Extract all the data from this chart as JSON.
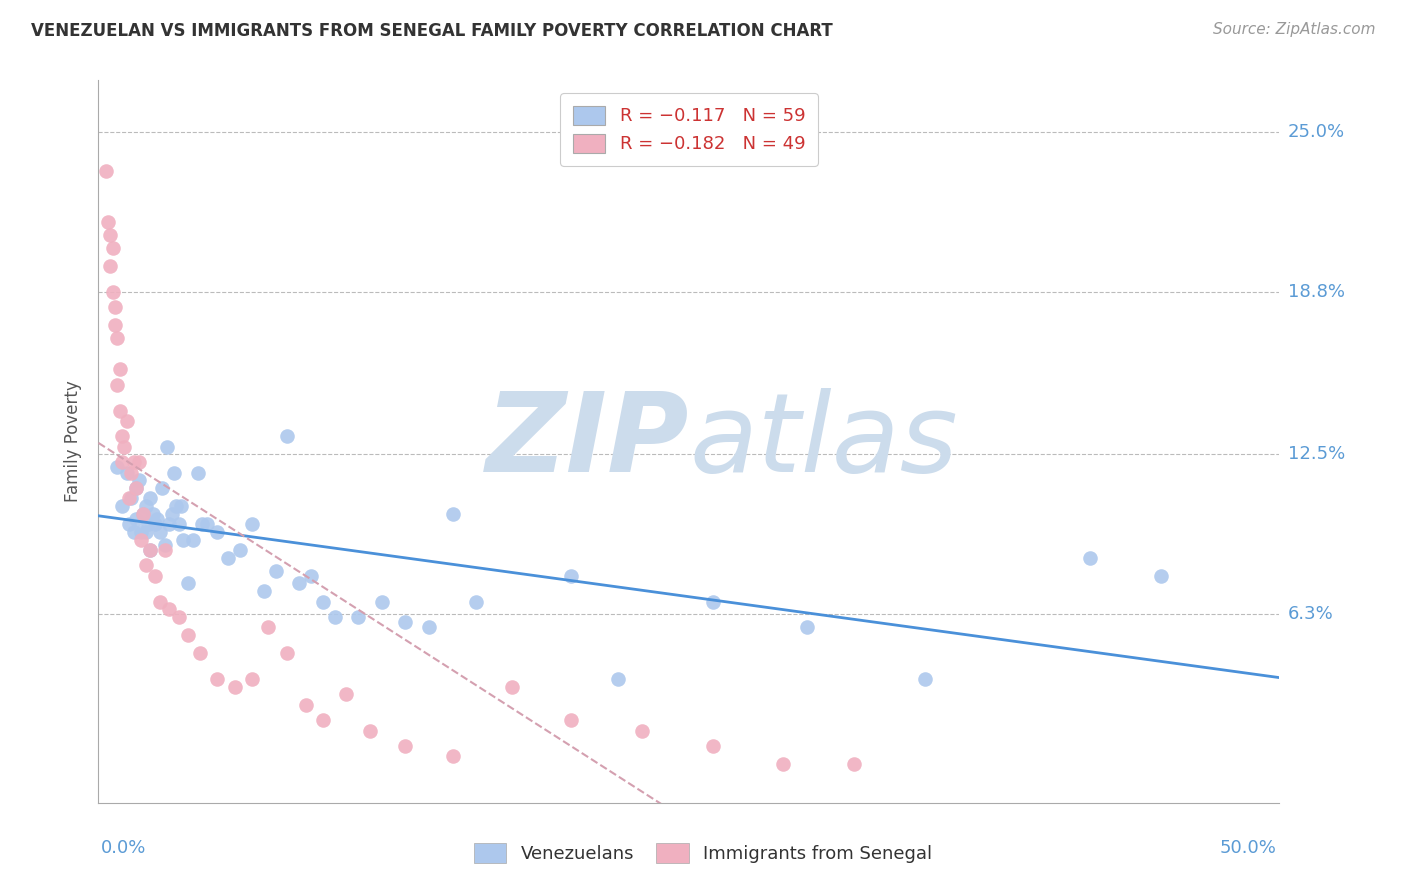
{
  "title": "VENEZUELAN VS IMMIGRANTS FROM SENEGAL FAMILY POVERTY CORRELATION CHART",
  "source": "Source: ZipAtlas.com",
  "ylabel": "Family Poverty",
  "ytick_labels": [
    "25.0%",
    "18.8%",
    "12.5%",
    "6.3%"
  ],
  "ytick_values": [
    0.25,
    0.188,
    0.125,
    0.063
  ],
  "xlim": [
    0.0,
    0.5
  ],
  "ylim": [
    -0.01,
    0.27
  ],
  "legend_entries": [
    {
      "label": "R = −0.117   N = 59",
      "color": "#adc8ed"
    },
    {
      "label": "R = −0.182   N = 49",
      "color": "#f0b0c0"
    }
  ],
  "legend_labels_bottom": [
    "Venezuelans",
    "Immigrants from Senegal"
  ],
  "venezuelan_color": "#adc8ed",
  "senegal_color": "#f0b0c0",
  "trend_venezuelan_color": "#4a90d9",
  "trend_senegal_color": "#d4a0b0",
  "watermark_zip": "ZIP",
  "watermark_atlas": "atlas",
  "watermark_color": "#ccdcec",
  "background_color": "#ffffff",
  "grid_color": "#bbbbbb",
  "venezuelan_x": [
    0.008,
    0.01,
    0.012,
    0.013,
    0.014,
    0.015,
    0.016,
    0.016,
    0.017,
    0.018,
    0.019,
    0.02,
    0.02,
    0.021,
    0.022,
    0.022,
    0.023,
    0.024,
    0.025,
    0.026,
    0.027,
    0.028,
    0.029,
    0.03,
    0.031,
    0.032,
    0.033,
    0.034,
    0.035,
    0.036,
    0.038,
    0.04,
    0.042,
    0.044,
    0.046,
    0.05,
    0.055,
    0.06,
    0.065,
    0.07,
    0.075,
    0.08,
    0.085,
    0.09,
    0.095,
    0.1,
    0.11,
    0.12,
    0.13,
    0.14,
    0.15,
    0.16,
    0.2,
    0.22,
    0.26,
    0.3,
    0.35,
    0.42,
    0.45
  ],
  "venezuelan_y": [
    0.12,
    0.105,
    0.118,
    0.098,
    0.108,
    0.095,
    0.112,
    0.1,
    0.115,
    0.095,
    0.102,
    0.105,
    0.095,
    0.098,
    0.108,
    0.088,
    0.102,
    0.098,
    0.1,
    0.095,
    0.112,
    0.09,
    0.128,
    0.098,
    0.102,
    0.118,
    0.105,
    0.098,
    0.105,
    0.092,
    0.075,
    0.092,
    0.118,
    0.098,
    0.098,
    0.095,
    0.085,
    0.088,
    0.098,
    0.072,
    0.08,
    0.132,
    0.075,
    0.078,
    0.068,
    0.062,
    0.062,
    0.068,
    0.06,
    0.058,
    0.102,
    0.068,
    0.078,
    0.038,
    0.068,
    0.058,
    0.038,
    0.085,
    0.078
  ],
  "senegal_x": [
    0.003,
    0.004,
    0.005,
    0.005,
    0.006,
    0.006,
    0.007,
    0.007,
    0.008,
    0.008,
    0.009,
    0.009,
    0.01,
    0.01,
    0.011,
    0.012,
    0.013,
    0.014,
    0.015,
    0.016,
    0.017,
    0.018,
    0.019,
    0.02,
    0.022,
    0.024,
    0.026,
    0.028,
    0.03,
    0.034,
    0.038,
    0.043,
    0.05,
    0.058,
    0.065,
    0.072,
    0.08,
    0.088,
    0.095,
    0.105,
    0.115,
    0.13,
    0.15,
    0.175,
    0.2,
    0.23,
    0.26,
    0.29,
    0.32
  ],
  "senegal_y": [
    0.235,
    0.215,
    0.21,
    0.198,
    0.205,
    0.188,
    0.182,
    0.175,
    0.17,
    0.152,
    0.158,
    0.142,
    0.132,
    0.122,
    0.128,
    0.138,
    0.108,
    0.118,
    0.122,
    0.112,
    0.122,
    0.092,
    0.102,
    0.082,
    0.088,
    0.078,
    0.068,
    0.088,
    0.065,
    0.062,
    0.055,
    0.048,
    0.038,
    0.035,
    0.038,
    0.058,
    0.048,
    0.028,
    0.022,
    0.032,
    0.018,
    0.012,
    0.008,
    0.035,
    0.022,
    0.018,
    0.012,
    0.005,
    0.005
  ]
}
